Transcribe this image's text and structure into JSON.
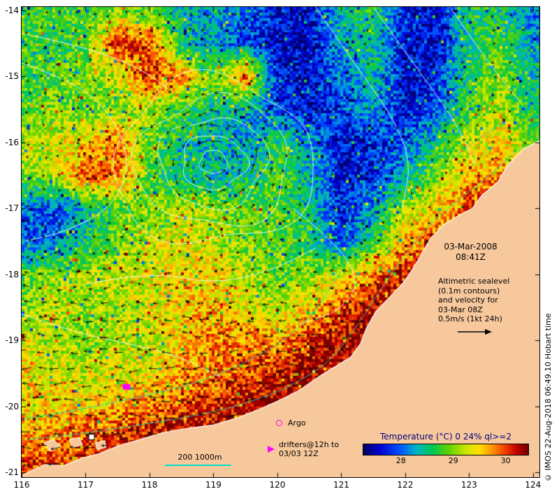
{
  "credit": "© IMOS 22-Aug-2018 06:49.10 Hobart time",
  "annotations": {
    "timestamp_line1": "03-Mar-2008",
    "timestamp_line2": "08:41Z",
    "info_lines": [
      "Altimetric sealevel",
      "(0.1m contours)",
      "and velocity for",
      "03-Mar 08Z",
      "0.5m/s (1kt 24h)"
    ]
  },
  "legend": {
    "argo_label": "Argo",
    "drifters_line1": "drifters@12h to",
    "drifters_line2": "03/03 12Z",
    "bathy_label": "200  1000m"
  },
  "colorbar": {
    "title": "Temperature (°C) 0 24% ql>=2",
    "title_color": "#000080",
    "ticks": [
      "28",
      "29",
      "30"
    ],
    "tick_positions": [
      0.23,
      0.545,
      0.86
    ]
  },
  "axes": {
    "x_ticks": [
      "116",
      "117",
      "118",
      "119",
      "120",
      "121",
      "122",
      "123",
      "124"
    ],
    "y_ticks": [
      "-14",
      "-15",
      "-16",
      "-17",
      "-18",
      "-19",
      "-20",
      "-21"
    ],
    "lon_range": [
      116,
      124
    ],
    "lat_range": [
      -21,
      -14
    ]
  },
  "map": {
    "land_color": "#f7c89c",
    "coast_color": "#ffffff",
    "contour_color": "#eefaff",
    "bathy_color": "#00e0d0",
    "vector_color": "#000000",
    "marker_color": "#ff00ff",
    "eddy": {
      "lon": 119.0,
      "lat": -16.3
    },
    "colormap": [
      [
        0.0,
        "#000060"
      ],
      [
        0.1,
        "#0000d0"
      ],
      [
        0.22,
        "#0050ff"
      ],
      [
        0.32,
        "#00b4c8"
      ],
      [
        0.42,
        "#00c850"
      ],
      [
        0.52,
        "#64d200"
      ],
      [
        0.62,
        "#c8e600"
      ],
      [
        0.7,
        "#ffe000"
      ],
      [
        0.78,
        "#ff9600"
      ],
      [
        0.86,
        "#f03c00"
      ],
      [
        0.93,
        "#c00000"
      ],
      [
        1.0,
        "#700000"
      ]
    ],
    "sst_grid": {
      "lon0": 116,
      "dlon": 0.5,
      "lat0": -14,
      "dlat": -0.5,
      "values": [
        [
          0.45,
          0.5,
          0.45,
          0.55,
          0.5,
          0.35,
          0.3,
          0.25,
          0.15,
          0.1,
          0.35,
          0.45,
          0.15,
          0.1,
          0.45,
          0.4,
          0.25
        ],
        [
          0.5,
          0.45,
          0.5,
          0.9,
          0.85,
          0.4,
          0.3,
          0.2,
          0.1,
          0.1,
          0.3,
          0.4,
          0.12,
          0.1,
          0.4,
          0.5,
          0.3
        ],
        [
          0.45,
          0.5,
          0.55,
          0.6,
          0.9,
          0.8,
          0.5,
          0.85,
          0.15,
          0.1,
          0.25,
          0.35,
          0.1,
          0.15,
          0.45,
          0.55,
          0.35
        ],
        [
          0.5,
          0.55,
          0.5,
          0.55,
          0.6,
          0.45,
          0.4,
          0.35,
          0.2,
          0.12,
          0.2,
          0.3,
          0.12,
          0.2,
          0.5,
          0.6,
          0.4
        ],
        [
          0.6,
          0.65,
          0.7,
          0.85,
          0.5,
          0.4,
          0.35,
          0.3,
          0.45,
          0.3,
          0.12,
          0.15,
          0.25,
          0.4,
          0.6,
          0.7,
          0.5
        ],
        [
          0.55,
          0.6,
          0.85,
          0.8,
          0.5,
          0.4,
          0.35,
          0.4,
          0.5,
          0.35,
          0.12,
          0.15,
          0.3,
          0.55,
          0.75,
          0.8,
          0.6
        ],
        [
          0.25,
          0.2,
          0.35,
          0.5,
          0.55,
          0.6,
          0.55,
          0.5,
          0.5,
          0.4,
          0.15,
          0.3,
          0.6,
          0.7,
          0.85,
          0.8,
          0.7
        ],
        [
          0.2,
          0.25,
          0.4,
          0.55,
          0.6,
          0.65,
          0.6,
          0.55,
          0.5,
          0.45,
          0.2,
          0.45,
          0.75,
          0.85,
          0.85,
          0.85,
          0.85
        ],
        [
          0.5,
          0.55,
          0.6,
          0.6,
          0.65,
          0.7,
          0.7,
          0.6,
          0.5,
          0.55,
          0.65,
          0.8,
          0.9,
          0.9,
          0.9,
          0.9,
          0.9
        ],
        [
          0.55,
          0.6,
          0.55,
          0.6,
          0.65,
          0.7,
          0.75,
          0.65,
          0.6,
          0.7,
          0.85,
          0.95,
          0.95,
          0.95,
          0.95,
          0.95,
          0.95
        ],
        [
          0.65,
          0.6,
          0.55,
          0.6,
          0.6,
          0.7,
          0.8,
          0.8,
          0.75,
          0.9,
          0.95,
          0.95,
          0.95,
          0.95,
          0.95,
          0.95,
          0.95
        ],
        [
          0.7,
          0.65,
          0.6,
          0.65,
          0.65,
          0.75,
          0.8,
          0.85,
          0.9,
          0.95,
          0.95,
          0.95,
          0.95,
          0.95,
          0.95,
          0.95,
          0.95
        ],
        [
          0.7,
          0.7,
          0.7,
          0.75,
          0.8,
          0.85,
          0.9,
          0.95,
          0.97,
          0.97,
          0.97,
          0.97,
          0.97,
          0.97,
          0.97,
          0.97,
          0.97
        ],
        [
          0.75,
          0.8,
          0.85,
          0.9,
          0.95,
          0.97,
          0.97,
          0.97,
          0.97,
          0.97,
          0.97,
          0.97,
          0.97,
          0.97,
          0.97,
          0.97,
          0.97
        ],
        [
          0.9,
          0.9,
          0.9,
          0.92,
          0.95,
          0.97,
          0.97,
          0.97,
          0.97,
          0.97,
          0.97,
          0.97,
          0.97,
          0.97,
          0.97,
          0.97,
          0.97
        ]
      ]
    },
    "coast_polygon": [
      [
        124.15,
        -15.95
      ],
      [
        123.85,
        -16.1
      ],
      [
        123.6,
        -16.35
      ],
      [
        123.45,
        -16.6
      ],
      [
        123.2,
        -16.8
      ],
      [
        123.05,
        -17.0
      ],
      [
        122.85,
        -17.1
      ],
      [
        122.6,
        -17.25
      ],
      [
        122.4,
        -17.45
      ],
      [
        122.25,
        -17.7
      ],
      [
        122.1,
        -17.95
      ],
      [
        121.95,
        -18.15
      ],
      [
        121.75,
        -18.35
      ],
      [
        121.55,
        -18.55
      ],
      [
        121.4,
        -18.8
      ],
      [
        121.3,
        -19.05
      ],
      [
        121.15,
        -19.25
      ],
      [
        120.9,
        -19.4
      ],
      [
        120.65,
        -19.55
      ],
      [
        120.35,
        -19.75
      ],
      [
        120.05,
        -19.9
      ],
      [
        119.7,
        -20.05
      ],
      [
        119.35,
        -20.18
      ],
      [
        119.0,
        -20.28
      ],
      [
        118.6,
        -20.33
      ],
      [
        118.2,
        -20.4
      ],
      [
        117.85,
        -20.5
      ],
      [
        117.5,
        -20.6
      ],
      [
        117.2,
        -20.72
      ],
      [
        116.95,
        -20.78
      ],
      [
        116.65,
        -20.9
      ],
      [
        116.35,
        -20.88
      ],
      [
        116.1,
        -21.0
      ],
      [
        115.9,
        -21.1
      ],
      [
        115.9,
        -21.3
      ],
      [
        124.15,
        -21.3
      ]
    ],
    "islands": [
      [
        [
          116.35,
          -20.55
        ],
        [
          116.5,
          -20.5
        ],
        [
          116.6,
          -20.6
        ],
        [
          116.45,
          -20.68
        ]
      ],
      [
        [
          116.75,
          -20.5
        ],
        [
          116.9,
          -20.47
        ],
        [
          116.95,
          -20.58
        ],
        [
          116.8,
          -20.62
        ]
      ],
      [
        [
          117.15,
          -20.55
        ],
        [
          117.3,
          -20.52
        ],
        [
          117.32,
          -20.62
        ],
        [
          117.18,
          -20.65
        ]
      ]
    ],
    "contour_lines": [
      [
        [
          116.0,
          -14.8
        ],
        [
          116.9,
          -15.1
        ],
        [
          117.5,
          -15.7
        ],
        [
          117.7,
          -16.4
        ],
        [
          117.4,
          -17.0
        ],
        [
          116.7,
          -17.35
        ],
        [
          116.05,
          -17.5
        ]
      ],
      [
        [
          116.0,
          -14.35
        ],
        [
          117.0,
          -14.55
        ],
        [
          117.9,
          -14.9
        ],
        [
          118.3,
          -15.2
        ]
      ],
      [
        [
          120.6,
          -13.95
        ],
        [
          121.2,
          -14.8
        ],
        [
          121.8,
          -15.6
        ],
        [
          122.1,
          -16.3
        ],
        [
          121.95,
          -17.0
        ]
      ],
      [
        [
          121.5,
          -13.95
        ],
        [
          122.2,
          -14.9
        ],
        [
          122.8,
          -15.7
        ],
        [
          123.1,
          -16.35
        ]
      ],
      [
        [
          122.7,
          -13.95
        ],
        [
          123.3,
          -14.8
        ],
        [
          123.85,
          -15.45
        ]
      ],
      [
        [
          120.25,
          -17.0
        ],
        [
          120.9,
          -17.5
        ],
        [
          121.3,
          -18.1
        ],
        [
          121.0,
          -18.55
        ],
        [
          120.35,
          -18.75
        ]
      ],
      [
        [
          116.0,
          -18.6
        ],
        [
          116.9,
          -18.9
        ],
        [
          117.7,
          -19.05
        ],
        [
          118.5,
          -19.25
        ],
        [
          119.1,
          -19.55
        ]
      ],
      [
        [
          117.0,
          -18.15
        ],
        [
          118.0,
          -17.95
        ],
        [
          119.0,
          -18.15
        ],
        [
          119.9,
          -17.95
        ],
        [
          120.6,
          -17.6
        ]
      ]
    ],
    "bathy_lines": [
      [
        [
          116.1,
          -20.5
        ],
        [
          116.9,
          -20.42
        ],
        [
          117.7,
          -20.3
        ],
        [
          118.5,
          -20.18
        ],
        [
          119.3,
          -20.02
        ],
        [
          120.1,
          -19.75
        ],
        [
          120.8,
          -19.35
        ],
        [
          121.2,
          -18.85
        ],
        [
          121.6,
          -18.25
        ],
        [
          122.0,
          -17.7
        ],
        [
          122.4,
          -17.2
        ],
        [
          122.95,
          -16.8
        ],
        [
          123.5,
          -16.35
        ],
        [
          123.95,
          -15.95
        ]
      ],
      [
        [
          115.95,
          -20.2
        ],
        [
          116.9,
          -20.05
        ],
        [
          117.9,
          -19.85
        ],
        [
          118.9,
          -19.6
        ],
        [
          119.8,
          -19.2
        ],
        [
          120.5,
          -18.7
        ],
        [
          120.9,
          -18.1
        ],
        [
          121.3,
          -17.5
        ],
        [
          121.8,
          -17.0
        ],
        [
          122.4,
          -16.5
        ],
        [
          123.0,
          -16.05
        ],
        [
          123.5,
          -15.7
        ]
      ]
    ],
    "drifter_marker": {
      "lon": 117.58,
      "lat": -19.66
    },
    "station_marker": {
      "lon": 117.05,
      "lat": -20.42
    }
  }
}
